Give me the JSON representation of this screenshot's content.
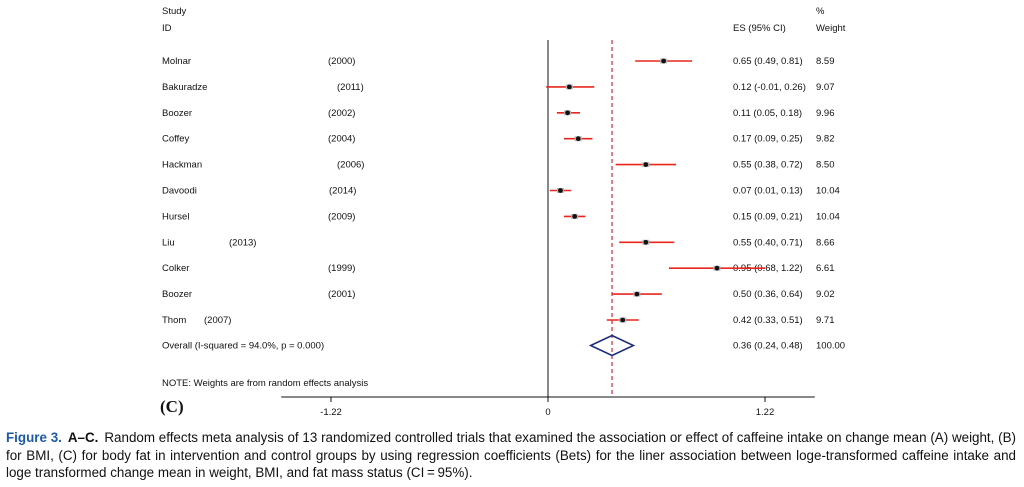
{
  "header": {
    "study": "Study",
    "id": "ID",
    "es": "ES (95% CI)",
    "pct": "%",
    "weight": "Weight"
  },
  "chart_data": {
    "type": "forest",
    "xlim": [
      -1.5,
      1.5
    ],
    "xticks": [
      -1.22,
      0,
      1.22
    ],
    "null_line": 0,
    "overall_line": 0.36,
    "studies": [
      {
        "name": "Molnar",
        "year": "(2000)",
        "es": 0.65,
        "lo": 0.49,
        "hi": 0.81,
        "es_text": "0.65 (0.49, 0.81)",
        "weight": "8.59"
      },
      {
        "name": "Bakuradze",
        "year": "(2011)",
        "es": 0.12,
        "lo": -0.01,
        "hi": 0.26,
        "es_text": "0.12 (-0.01, 0.26)",
        "weight": "9.07"
      },
      {
        "name": "Boozer",
        "year": "(2002)",
        "es": 0.11,
        "lo": 0.05,
        "hi": 0.18,
        "es_text": "0.11 (0.05, 0.18)",
        "weight": "9.96"
      },
      {
        "name": "Coffey",
        "year": "(2004)",
        "es": 0.17,
        "lo": 0.09,
        "hi": 0.25,
        "es_text": "0.17 (0.09, 0.25)",
        "weight": "9.82"
      },
      {
        "name": "Hackman",
        "year": "(2006)",
        "es": 0.55,
        "lo": 0.38,
        "hi": 0.72,
        "es_text": "0.55 (0.38, 0.72)",
        "weight": "8.50"
      },
      {
        "name": "Davoodi",
        "year": "(2014)",
        "es": 0.07,
        "lo": 0.01,
        "hi": 0.13,
        "es_text": "0.07 (0.01, 0.13)",
        "weight": "10.04"
      },
      {
        "name": "Hursel",
        "year": "(2009)",
        "es": 0.15,
        "lo": 0.09,
        "hi": 0.21,
        "es_text": "0.15 (0.09, 0.21)",
        "weight": "10.04"
      },
      {
        "name": "Liu",
        "year": "(2013)",
        "es": 0.55,
        "lo": 0.4,
        "hi": 0.71,
        "es_text": "0.55 (0.40, 0.71)",
        "weight": "8.66"
      },
      {
        "name": "Colker",
        "year": "(1999)",
        "es": 0.95,
        "lo": 0.68,
        "hi": 1.22,
        "es_text": "0.95 (0.68, 1.22)",
        "weight": "6.61"
      },
      {
        "name": "Boozer",
        "year": "(2001)",
        "es": 0.5,
        "lo": 0.36,
        "hi": 0.64,
        "es_text": "0.50 (0.36, 0.64)",
        "weight": "9.02"
      },
      {
        "name": "Thom",
        "year": "(2007)",
        "es": 0.42,
        "lo": 0.33,
        "hi": 0.51,
        "es_text": "0.42 (0.33, 0.51)",
        "weight": "9.71"
      }
    ],
    "overall": {
      "label": "Overall  (I-squared = 94.0%, p = 0.000)",
      "es": 0.36,
      "lo": 0.24,
      "hi": 0.48,
      "es_text": "0.36 (0.24, 0.48)",
      "weight": "100.00"
    },
    "note": "NOTE: Weights are from random effects analysis",
    "panel": "(C)",
    "colors": {
      "ci": "#e8261e",
      "overall": "#1f2e7a",
      "dashed": "#c0172a"
    }
  },
  "caption": {
    "label": "Figure 3.",
    "sub": "A–C.",
    "text": "Random effects meta analysis of 13 randomized controlled trials that examined the association or effect of caffeine intake on change mean (A) weight, (B) for BMI, (C) for body fat in intervention and control groups by using regression coefficients (Bets) for the liner association between loge-transformed caffeine intake and loge transformed change mean in weight, BMI, and fat mass status (CI = 95%)."
  }
}
